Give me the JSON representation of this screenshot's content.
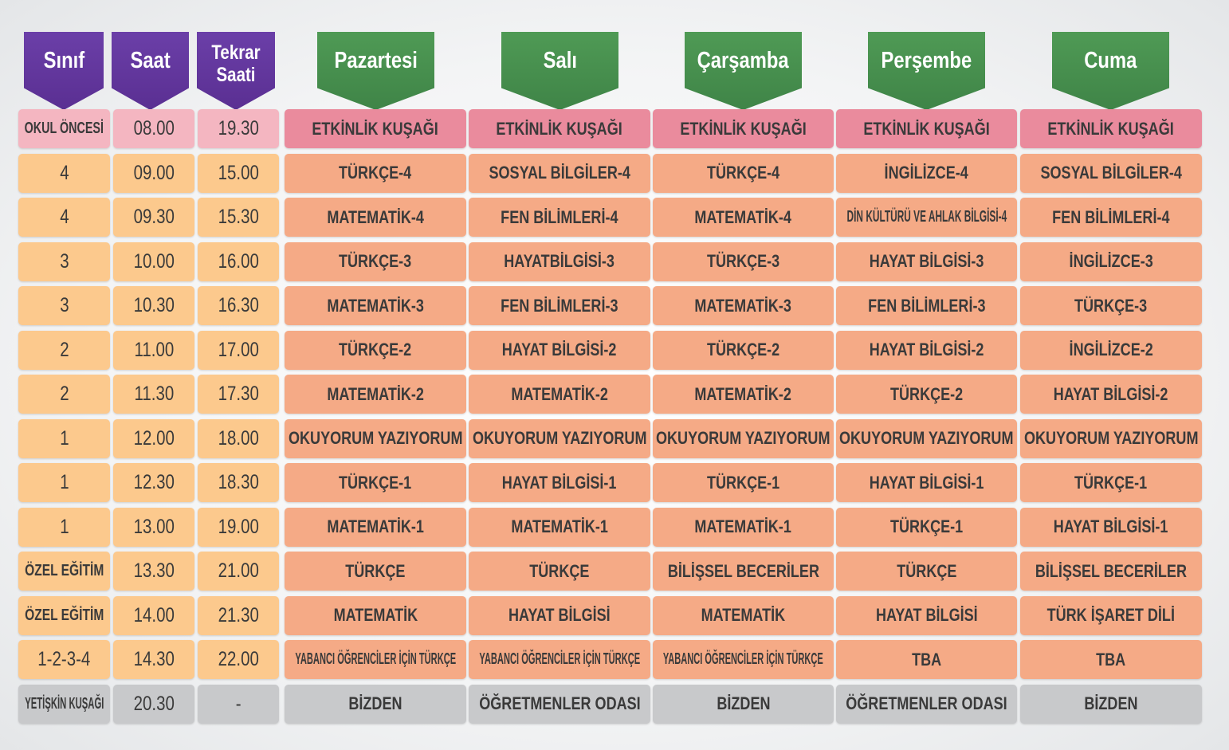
{
  "header": {
    "columns": [
      "Sınıf",
      "Saat",
      "Tekrar Saati",
      "Pazartesi",
      "Salı",
      "Çarşamba",
      "Perşembe",
      "Cuma"
    ]
  },
  "table": {
    "rows": [
      [
        "OKUL ÖNCESİ",
        "08.00",
        "19.30",
        "ETKİNLİK KUŞAĞI",
        "ETKİNLİK KUŞAĞI",
        "ETKİNLİK KUŞAĞI",
        "ETKİNLİK KUŞAĞI",
        "ETKİNLİK KUŞAĞI"
      ],
      [
        "4",
        "09.00",
        "15.00",
        "TÜRKÇE-4",
        "SOSYAL BİLGİLER-4",
        "TÜRKÇE-4",
        "İNGİLİZCE-4",
        "SOSYAL BİLGİLER-4"
      ],
      [
        "4",
        "09.30",
        "15.30",
        "MATEMATİK-4",
        "FEN BİLİMLERİ-4",
        "MATEMATİK-4",
        "DİN KÜLTÜRÜ VE AHLAK BİLGİSİ-4",
        "FEN BİLİMLERİ-4"
      ],
      [
        "3",
        "10.00",
        "16.00",
        "TÜRKÇE-3",
        "HAYATBİLGİSİ-3",
        "TÜRKÇE-3",
        "HAYAT BİLGİSİ-3",
        "İNGİLİZCE-3"
      ],
      [
        "3",
        "10.30",
        "16.30",
        "MATEMATİK-3",
        "FEN BİLİMLERİ-3",
        "MATEMATİK-3",
        "FEN BİLİMLERİ-3",
        "TÜRKÇE-3"
      ],
      [
        "2",
        "11.00",
        "17.00",
        "TÜRKÇE-2",
        "HAYAT BİLGİSİ-2",
        "TÜRKÇE-2",
        "HAYAT BİLGİSİ-2",
        "İNGİLİZCE-2"
      ],
      [
        "2",
        "11.30",
        "17.30",
        "MATEMATİK-2",
        "MATEMATİK-2",
        "MATEMATİK-2",
        "TÜRKÇE-2",
        "HAYAT BİLGİSİ-2"
      ],
      [
        "1",
        "12.00",
        "18.00",
        "OKUYORUM YAZIYORUM",
        "OKUYORUM YAZIYORUM",
        "OKUYORUM YAZIYORUM",
        "OKUYORUM YAZIYORUM",
        "OKUYORUM YAZIYORUM"
      ],
      [
        "1",
        "12.30",
        "18.30",
        "TÜRKÇE-1",
        "HAYAT BİLGİSİ-1",
        "TÜRKÇE-1",
        "HAYAT BİLGİSİ-1",
        "TÜRKÇE-1"
      ],
      [
        "1",
        "13.00",
        "19.00",
        "MATEMATİK-1",
        "MATEMATİK-1",
        "MATEMATİK-1",
        "TÜRKÇE-1",
        "HAYAT BİLGİSİ-1"
      ],
      [
        "ÖZEL EĞİTİM",
        "13.30",
        "21.00",
        "TÜRKÇE",
        "TÜRKÇE",
        "BİLİŞSEL BECERİLER",
        "TÜRKÇE",
        "BİLİŞSEL BECERİLER"
      ],
      [
        "ÖZEL EĞİTİM",
        "14.00",
        "21.30",
        "MATEMATİK",
        "HAYAT BİLGİSİ",
        "MATEMATİK",
        "HAYAT BİLGİSİ",
        "TÜRK İŞARET DİLİ"
      ],
      [
        "1-2-3-4",
        "14.30",
        "22.00",
        "YABANCI ÖĞRENCİLER İÇİN TÜRKÇE",
        "YABANCI ÖĞRENCİLER İÇİN TÜRKÇE",
        "YABANCI ÖĞRENCİLER İÇİN TÜRKÇE",
        "TBA",
        "TBA"
      ],
      [
        "YETİŞKİN KUŞAĞI",
        "20.30",
        "-",
        "BİZDEN",
        "ÖĞRETMENLER ODASI",
        "BİZDEN",
        "ÖĞRETMENLER ODASI",
        "BİZDEN"
      ]
    ]
  }
}
